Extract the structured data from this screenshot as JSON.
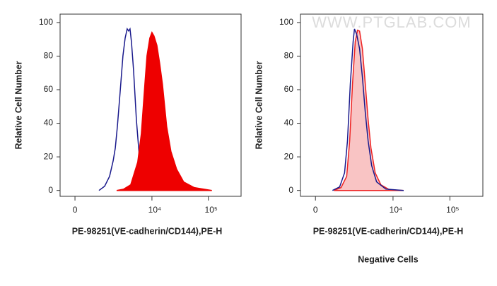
{
  "chart_data": [
    {
      "type": "line",
      "x_label": "PE-98251(VE-cadherin/CD144),PE-H",
      "y_label": "Relative Cell Number",
      "xscale": "biex",
      "biex_width": 868,
      "xlim": [
        -560,
        380000
      ],
      "xticks": [
        0,
        {
          "value": 10000,
          "label": "10⁴"
        },
        {
          "value": 100000,
          "label": "10⁵"
        }
      ],
      "ylim": [
        -3.5,
        105
      ],
      "yticks": [
        0,
        20,
        40,
        60,
        80,
        100
      ],
      "series": [
        {
          "color": "#1a1a8c",
          "fill": null,
          "x": [
            992,
            1323,
            1672,
            1968,
            2163,
            2367,
            2673,
            3012,
            3298,
            3600,
            3818,
            4048,
            4297,
            4687,
            5270,
            5920,
            6850,
            8150,
            10000
          ],
          "values": [
            0,
            2.5,
            8.4,
            17.7,
            25.3,
            38,
            59,
            80.2,
            90.7,
            96.2,
            95,
            96.2,
            88.6,
            71.7,
            42.2,
            21.1,
            8.4,
            2.1,
            0
          ]
        },
        {
          "color": "#ee0000",
          "fill": "#ee0000",
          "x": [
            2298,
            3102,
            4170,
            5580,
            6467,
            7473,
            8150,
            9157,
            10000,
            10885,
            12221,
            13714,
            15390,
            18297,
            21735,
            27377,
            36517,
            56246,
            115444
          ],
          "values": [
            0,
            0.8,
            3.4,
            16.9,
            33.8,
            63.3,
            80.2,
            90.7,
            94.1,
            92,
            86.5,
            75.9,
            63.3,
            38,
            23.2,
            12.7,
            5.1,
            1.7,
            0
          ]
        }
      ]
    },
    {
      "type": "line",
      "x_label": "PE-98251(VE-cadherin/CD144),PE-H",
      "y_label": "Relative Cell Number",
      "caption": "Negative Cells",
      "watermark": "WWW.PTGLAB.COM",
      "xscale": "biex",
      "biex_width": 868,
      "xlim": [
        -560,
        380000
      ],
      "xticks": [
        0,
        {
          "value": 10000,
          "label": "10⁴"
        },
        {
          "value": 100000,
          "label": "10⁵"
        }
      ],
      "ylim": [
        -3.5,
        105
      ],
      "yticks": [
        0,
        20,
        40,
        60,
        80,
        100
      ],
      "series": [
        {
          "color": "#ee2222",
          "fill": "#f9c4c4",
          "x": [
            712,
            1068,
            1413,
            1622,
            1843,
            2085,
            2298,
            2510,
            2836,
            3200,
            3600,
            4048,
            4833,
            6093,
            8637,
            15390
          ],
          "values": [
            0,
            1.7,
            8.4,
            29.5,
            63.3,
            88.6,
            95.4,
            94.9,
            84.4,
            63.3,
            42.2,
            25.3,
            10.5,
            3.4,
            0.4,
            0
          ]
        },
        {
          "color": "#1a1a8c",
          "fill": null,
          "x": [
            648,
            992,
            1276,
            1469,
            1672,
            1900,
            2014,
            2227,
            2510,
            2836,
            3200,
            3600,
            4170,
            5120,
            7473,
            15390
          ],
          "values": [
            0,
            2.1,
            10.5,
            29.5,
            63.3,
            88.6,
            96.2,
            92.8,
            84.4,
            67.5,
            46.4,
            29.5,
            14.8,
            5.1,
            0.8,
            0
          ]
        }
      ]
    }
  ]
}
